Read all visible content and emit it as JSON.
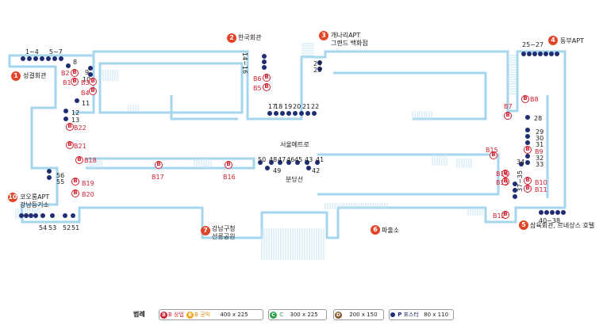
{
  "colors": {
    "outline": "#9fd2ec",
    "stairs": "#c7e5f4",
    "dot": "#1f2d73",
    "red": "#d2202f",
    "badge": "#e2462a"
  },
  "landmarks": [
    {
      "n": "1",
      "t": "성결회관"
    },
    {
      "n": "2",
      "t": "한국회관"
    },
    {
      "n": "3",
      "t1": "개나리APT",
      "t2": "그랜드 백화점"
    },
    {
      "n": "4",
      "t": "동부APT"
    },
    {
      "n": "5",
      "t": "삼육회관, 르네상스 호텔"
    },
    {
      "n": "6",
      "t": "파출소"
    },
    {
      "n": "7",
      "t1": "강남구청",
      "t2": "선릉공원"
    },
    {
      "n": "10",
      "t1": "코오롱APT",
      "t2": "강남등기소"
    }
  ],
  "center": {
    "top": "서울메트로",
    "bottom": "분당선"
  },
  "posters": {
    "p1": "1~4",
    "p5": "5~7",
    "p8": "8",
    "p9": "9",
    "p10": "10",
    "p11": "11",
    "p12": "12",
    "p13": "13",
    "p14": "14~16",
    "p17": "17",
    "p18": "18",
    "p19": "19",
    "p20": "20",
    "p21": "21",
    "p22": "22",
    "p23": "23",
    "p24": "24",
    "p25": "25~27",
    "p28": "28",
    "p29": "29",
    "p30": "30",
    "p31": "31",
    "p32": "32",
    "p33": "33",
    "p34": "34",
    "p37": "37~35",
    "p40": "40~38",
    "p41": "41",
    "p42": "42",
    "p43": "43",
    "p45": "45",
    "p46": "46",
    "p47": "47",
    "p48": "48",
    "p49": "49",
    "p50": "50",
    "p51": "51",
    "p52": "52",
    "p53": "53",
    "p54": "54",
    "p55": "55",
    "p56": "56"
  },
  "boards": {
    "b1": "B1",
    "b2": "B2",
    "b3": "B3",
    "b4": "B4",
    "b5": "B5",
    "b6": "B6",
    "b7": "B7",
    "b8": "B8",
    "b9": "B9",
    "b10": "B10",
    "b11": "B11",
    "b12": "B12",
    "b13": "B13",
    "b14": "B14",
    "b15": "B15",
    "b16": "B16",
    "b17": "B17",
    "b18": "B18",
    "b19": "B19",
    "b20": "B20",
    "b21": "B21",
    "b22": "B22"
  },
  "legend": {
    "title": "범례",
    "b_letter": "B",
    "b_label": "상업",
    "b2_label": "공익",
    "b_size": "400 x 225",
    "c_letter": "C",
    "c_label": "C",
    "c_size": "300 x 225",
    "d_letter": "D",
    "d_size": "200 x 150",
    "p_letter": "P",
    "p_label": "포스터",
    "p_size": "80 x 110"
  }
}
